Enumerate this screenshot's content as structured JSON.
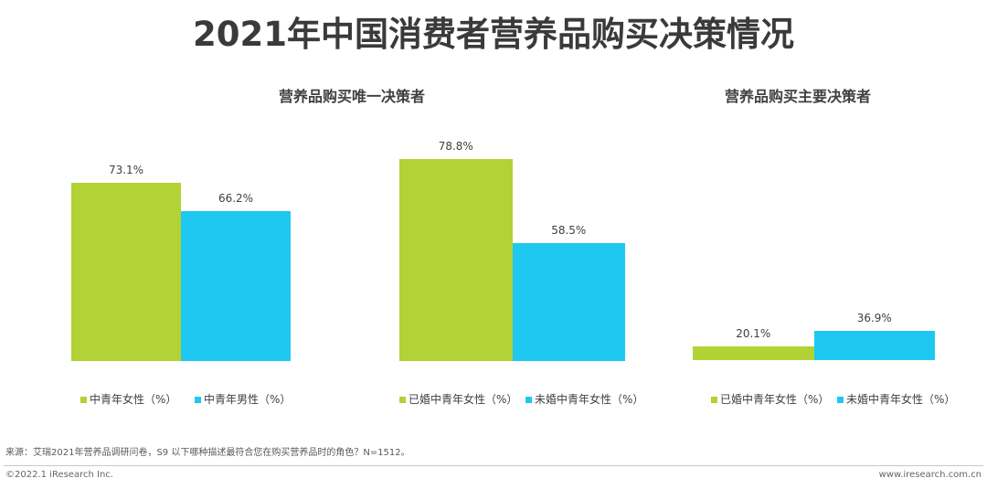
{
  "title": "2021年中国消费者营养品购买决策情况",
  "subtitles": [
    "营养品购买唯一决策者",
    "营养品购买主要决策者"
  ],
  "colors": {
    "title": "#3a3a3a",
    "text": "#404040",
    "green": "#B2D235",
    "blue": "#1FC8F0"
  },
  "chart_data": [
    {
      "type": "bar",
      "ylim": [
        30,
        90
      ],
      "series": [
        {
          "name": "中青年女性（%）",
          "value": 73.1,
          "label": "73.1%",
          "color": "#B2D235"
        },
        {
          "name": "中青年男性（%）",
          "value": 66.2,
          "label": "66.2%",
          "color": "#1FC8F0"
        }
      ]
    },
    {
      "type": "bar",
      "ylim": [
        30,
        90
      ],
      "series": [
        {
          "name": "已婚中青年女性（%）",
          "value": 78.8,
          "label": "78.8%",
          "color": "#B2D235"
        },
        {
          "name": "未婚中青年女性（%）",
          "value": 58.5,
          "label": "58.5%",
          "color": "#1FC8F0"
        }
      ]
    },
    {
      "type": "bar",
      "ylim": [
        5,
        280
      ],
      "series": [
        {
          "name": "已婚中青年女性（%）",
          "value": 20.1,
          "label": "20.1%",
          "color": "#B2D235"
        },
        {
          "name": "未婚中青年女性（%）",
          "value": 36.9,
          "label": "36.9%",
          "color": "#1FC8F0"
        }
      ]
    }
  ],
  "source": "来源：艾瑞2021年营养品调研问卷，S9 以下哪种描述最符合您在购买营养品时的角色？N=1512。",
  "footer": {
    "copyright": "©2022.1 iResearch Inc.",
    "website": "www.iresearch.com.cn"
  }
}
